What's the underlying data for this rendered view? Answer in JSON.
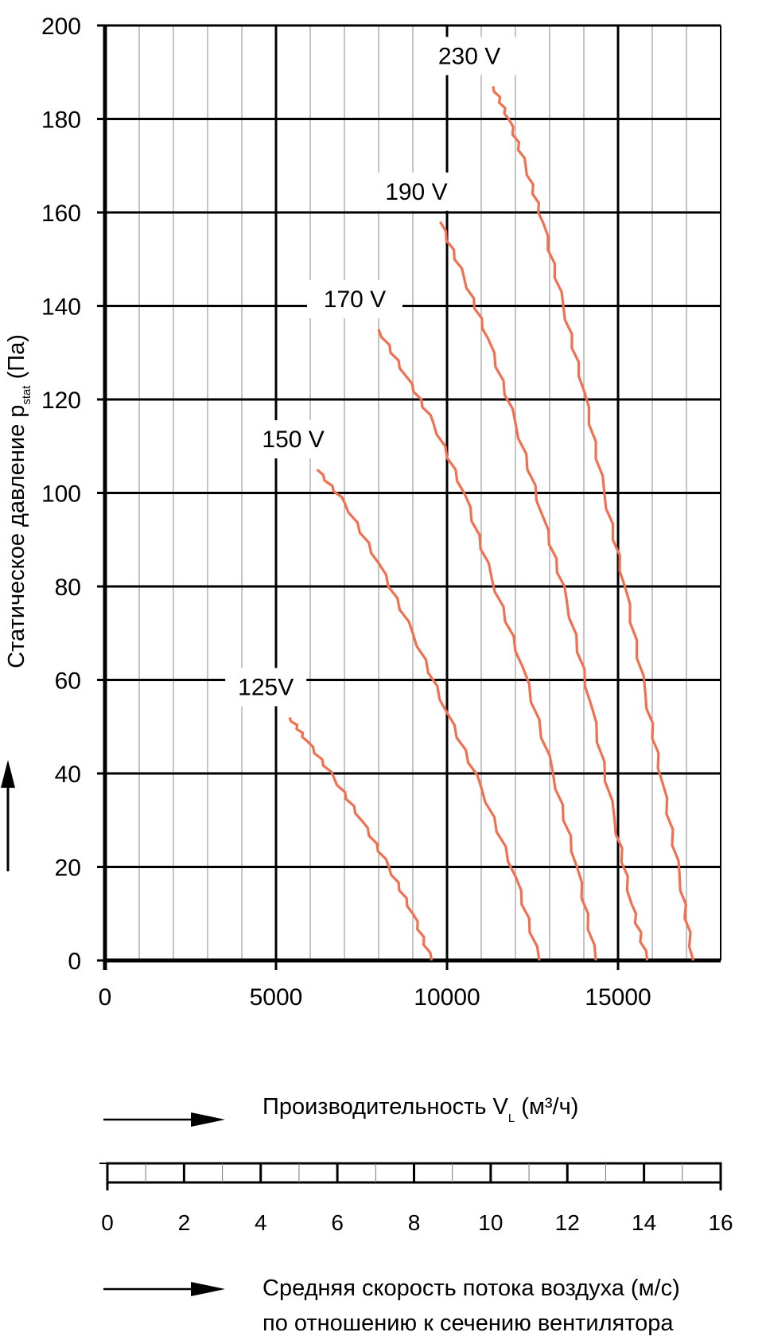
{
  "chart_data": {
    "type": "line",
    "ylabel_main": "Статическое давление p",
    "ylabel_sub": "stat",
    "ylabel_unit": " (Па)",
    "xlabel_main": "Производительность V",
    "xlabel_sub": "L",
    "xlabel_unit": "  (м³/ч)",
    "speed_label_line1": "Средняя скорость потока воздуха (м/с)",
    "speed_label_line2": "по отношению к сечению вентилятора",
    "xlim": [
      0,
      18000
    ],
    "ylim": [
      0,
      200
    ],
    "x_ticks": [
      0,
      5000,
      10000,
      15000
    ],
    "y_ticks": [
      0,
      20,
      40,
      60,
      80,
      100,
      120,
      140,
      160,
      180,
      200
    ],
    "speed_ticks": [
      0,
      2,
      4,
      6,
      8,
      10,
      12,
      14,
      16
    ],
    "speed_range": [
      0,
      16
    ],
    "grid": true,
    "line_color": "#f07050",
    "series": [
      {
        "name": "125V",
        "points": [
          [
            5400,
            52
          ],
          [
            5900,
            47
          ],
          [
            6700,
            39
          ],
          [
            7500,
            30
          ],
          [
            8300,
            20
          ],
          [
            9000,
            10
          ],
          [
            9550,
            0
          ]
        ]
      },
      {
        "name": "150 V",
        "points": [
          [
            6200,
            105
          ],
          [
            7000,
            98
          ],
          [
            8000,
            85
          ],
          [
            9000,
            70
          ],
          [
            10000,
            53
          ],
          [
            11000,
            37
          ],
          [
            12000,
            18
          ],
          [
            12700,
            0
          ]
        ]
      },
      {
        "name": "170 V",
        "points": [
          [
            8000,
            135
          ],
          [
            8800,
            125
          ],
          [
            9600,
            115
          ],
          [
            10500,
            100
          ],
          [
            11300,
            82
          ],
          [
            12200,
            63
          ],
          [
            13100,
            40
          ],
          [
            13800,
            20
          ],
          [
            14350,
            0
          ]
        ]
      },
      {
        "name": "190 V",
        "points": [
          [
            9800,
            158
          ],
          [
            10500,
            146
          ],
          [
            11200,
            133
          ],
          [
            12000,
            115
          ],
          [
            12800,
            95
          ],
          [
            13500,
            77
          ],
          [
            14200,
            55
          ],
          [
            14900,
            30
          ],
          [
            15400,
            12
          ],
          [
            15850,
            0
          ]
        ]
      },
      {
        "name": "230 V",
        "points": [
          [
            11350,
            187
          ],
          [
            11800,
            180
          ],
          [
            12300,
            170
          ],
          [
            12800,
            158
          ],
          [
            13400,
            140
          ],
          [
            14000,
            122
          ],
          [
            14600,
            100
          ],
          [
            15200,
            80
          ],
          [
            15800,
            57
          ],
          [
            16300,
            38
          ],
          [
            16800,
            18
          ],
          [
            17200,
            0
          ]
        ]
      }
    ]
  }
}
